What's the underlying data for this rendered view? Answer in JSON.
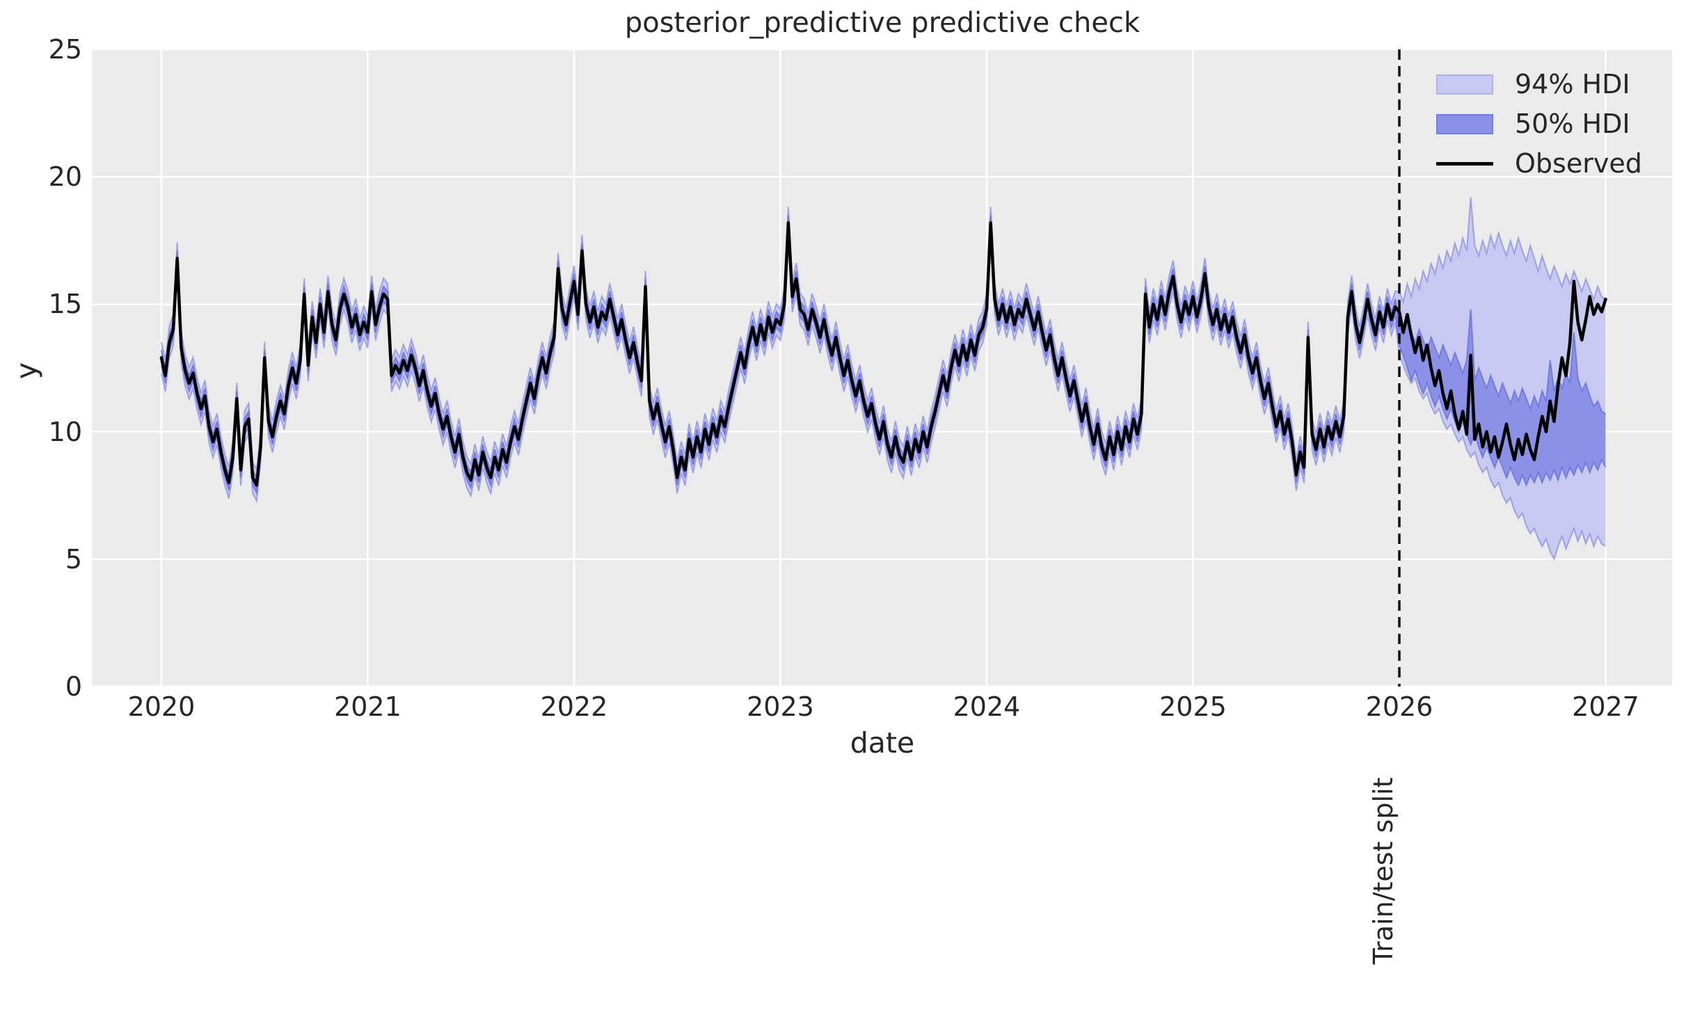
{
  "figure": {
    "title": "posterior_predictive predictive check",
    "background": "#ffffff"
  },
  "axes": {
    "xlabel": "date",
    "ylabel": "y",
    "facecolor": "#ebebeb",
    "grid_color": "#ffffff",
    "text_color": "#262626",
    "xlim": [
      2019.663,
      2027.322
    ],
    "ylim": [
      0,
      25
    ],
    "xticks": [
      "2020",
      "2021",
      "2022",
      "2023",
      "2024",
      "2025",
      "2026",
      "2027"
    ],
    "xtick_values": [
      2020,
      2021,
      2022,
      2023,
      2024,
      2025,
      2026,
      2027
    ],
    "yticks": [
      "0",
      "5",
      "10",
      "15",
      "20",
      "25"
    ],
    "ytick_values": [
      0,
      5,
      10,
      15,
      20,
      25
    ],
    "grid": "on"
  },
  "legend": {
    "location": "upper right",
    "items": [
      {
        "label": "94% HDI",
        "type": "patch",
        "color": "#c7c9f1"
      },
      {
        "label": "50% HDI",
        "type": "patch",
        "color": "#8b91e6"
      },
      {
        "label": "Observed",
        "type": "line",
        "color": "#000000"
      }
    ]
  },
  "split_marker": {
    "label": "Train/test split",
    "x": 2026.0,
    "style": "dashed",
    "color": "#0a0a0a"
  },
  "colors": {
    "observed_line": "#000000",
    "hdi94_fill": "#c7c9f1",
    "hdi50_fill": "#8b91e6",
    "hdi_edge": "#6a72df",
    "plot_bg": "#ebebeb",
    "grid": "#ffffff"
  },
  "chart_data": {
    "type": "line",
    "title": "posterior_predictive predictive check",
    "xlabel": "date",
    "ylabel": "y",
    "xlim": [
      2019.663,
      2027.322
    ],
    "ylim": [
      0,
      25
    ],
    "legend_position": "upper right",
    "x_start": 2020.0,
    "x_step": 0.01923076923,
    "n_points": 365,
    "train_test_split_x": 2026.0,
    "train_split_index": 312,
    "train_hdi94_halfwidth": 0.62,
    "train_hdi50_halfwidth": 0.3,
    "observed": [
      12.9,
      12.2,
      13.5,
      14.0,
      16.8,
      13.3,
      12.4,
      11.9,
      12.3,
      11.5,
      10.9,
      11.4,
      10.2,
      9.6,
      10.1,
      9.2,
      8.5,
      8.0,
      9.0,
      11.3,
      8.5,
      10.2,
      10.5,
      8.2,
      7.9,
      9.4,
      12.9,
      10.4,
      9.8,
      10.6,
      11.2,
      10.7,
      11.8,
      12.5,
      11.9,
      12.8,
      15.4,
      12.6,
      14.5,
      13.5,
      15.0,
      13.9,
      15.5,
      14.2,
      13.6,
      14.8,
      15.4,
      14.9,
      14.1,
      14.6,
      13.8,
      14.3,
      13.9,
      15.5,
      14.2,
      14.9,
      15.4,
      15.2,
      12.2,
      12.6,
      12.3,
      12.8,
      12.4,
      13.0,
      12.5,
      11.8,
      12.4,
      11.6,
      11.0,
      11.5,
      10.7,
      10.1,
      10.6,
      9.8,
      9.2,
      9.9,
      9.0,
      8.4,
      8.1,
      8.9,
      8.3,
      9.2,
      8.6,
      8.2,
      9.0,
      8.5,
      9.3,
      8.8,
      9.6,
      10.2,
      9.7,
      10.5,
      11.2,
      11.9,
      11.3,
      12.2,
      12.9,
      12.3,
      13.1,
      13.7,
      16.4,
      14.8,
      14.2,
      15.1,
      15.9,
      14.6,
      17.1,
      15.0,
      14.3,
      14.9,
      14.1,
      14.7,
      14.4,
      15.2,
      14.5,
      13.8,
      14.4,
      13.6,
      12.9,
      13.5,
      12.7,
      12.0,
      15.7,
      11.2,
      10.5,
      11.1,
      10.3,
      9.6,
      10.2,
      9.3,
      8.2,
      9.0,
      8.5,
      9.7,
      9.0,
      9.8,
      9.2,
      10.1,
      9.5,
      10.3,
      9.8,
      10.6,
      10.2,
      11.0,
      11.7,
      12.4,
      13.1,
      12.5,
      13.4,
      14.1,
      13.4,
      14.2,
      13.6,
      14.5,
      13.9,
      14.4,
      14.2,
      15.0,
      18.2,
      15.3,
      16.0,
      14.8,
      14.6,
      14.0,
      14.8,
      14.3,
      13.7,
      14.4,
      13.6,
      13.0,
      13.7,
      12.9,
      12.2,
      12.8,
      12.0,
      11.4,
      12.0,
      11.2,
      10.6,
      11.1,
      10.3,
      9.7,
      10.4,
      9.5,
      9.0,
      9.8,
      9.1,
      8.8,
      9.6,
      8.9,
      9.7,
      9.2,
      10.0,
      9.4,
      10.2,
      10.8,
      11.5,
      12.2,
      11.6,
      12.5,
      13.2,
      12.6,
      13.4,
      12.8,
      13.6,
      13.0,
      13.8,
      14.1,
      14.8,
      18.2,
      15.2,
      14.4,
      15.0,
      14.3,
      14.9,
      14.2,
      14.8,
      14.5,
      15.2,
      14.6,
      14.0,
      14.7,
      13.9,
      13.2,
      13.8,
      12.9,
      12.2,
      12.9,
      12.1,
      11.4,
      12.0,
      11.2,
      10.4,
      11.1,
      10.2,
      9.5,
      10.3,
      9.4,
      8.9,
      9.8,
      9.1,
      10.0,
      9.3,
      10.2,
      9.6,
      10.5,
      9.9,
      10.7,
      15.4,
      14.1,
      15.0,
      14.4,
      15.3,
      14.6,
      15.5,
      16.1,
      15.0,
      14.3,
      15.1,
      14.6,
      15.3,
      14.5,
      15.2,
      16.2,
      14.9,
      14.2,
      14.8,
      14.0,
      14.6,
      13.9,
      14.5,
      13.7,
      13.1,
      13.8,
      12.9,
      12.3,
      12.9,
      12.0,
      11.3,
      11.9,
      11.0,
      10.2,
      10.8,
      9.9,
      10.5,
      9.6,
      8.3,
      9.2,
      8.6,
      13.7,
      9.9,
      9.3,
      10.1,
      9.4,
      10.2,
      9.7,
      10.4,
      9.8,
      10.6,
      14.5,
      15.5,
      14.2,
      13.5,
      14.3,
      15.2,
      14.4,
      13.8,
      14.7,
      14.1,
      15.0,
      14.4,
      14.9,
      14.7,
      13.9,
      14.6,
      13.8,
      13.1,
      13.7,
      12.8,
      13.4,
      12.5,
      11.8,
      12.4,
      11.5,
      10.9,
      11.6,
      10.7,
      10.1,
      10.8,
      9.9,
      13.0,
      9.7,
      10.3,
      9.4,
      10.0,
      9.2,
      9.8,
      9.0,
      9.6,
      10.3,
      9.5,
      8.9,
      9.7,
      9.1,
      9.9,
      9.3,
      8.9,
      9.8,
      10.6,
      10.0,
      11.2,
      10.4,
      11.8,
      12.9,
      12.2,
      13.5,
      15.9,
      14.3,
      13.6,
      14.4,
      15.3,
      14.6,
      15.0,
      14.7,
      15.2
    ],
    "forecast_hdi": {
      "x_start": 2026.0,
      "hdi94_upper": [
        15.5,
        15.1,
        15.8,
        15.3,
        16.0,
        15.6,
        16.3,
        15.9,
        16.6,
        16.2,
        16.9,
        16.4,
        17.1,
        16.7,
        17.4,
        16.9,
        17.6,
        17.1,
        19.2,
        17.3,
        16.9,
        17.5,
        17.0,
        17.7,
        17.2,
        17.8,
        17.3,
        16.9,
        17.5,
        17.0,
        17.6,
        17.1,
        16.7,
        17.3,
        16.8,
        16.3,
        16.9,
        16.4,
        16.0,
        16.5,
        16.1,
        15.7,
        16.2,
        15.8,
        16.3,
        15.9,
        15.5,
        16.0,
        15.6,
        15.2,
        15.7,
        15.3,
        15.2
      ],
      "hdi94_lower": [
        13.0,
        12.6,
        12.2,
        11.9,
        12.1,
        11.6,
        11.3,
        11.5,
        11.0,
        10.7,
        10.9,
        10.4,
        10.1,
        10.3,
        9.9,
        9.6,
        9.8,
        9.3,
        9.0,
        9.2,
        8.7,
        8.4,
        8.6,
        8.1,
        7.8,
        8.0,
        7.5,
        7.2,
        7.4,
        6.9,
        6.6,
        6.8,
        6.3,
        6.0,
        6.2,
        5.8,
        5.5,
        5.8,
        5.3,
        5.0,
        5.5,
        5.9,
        5.4,
        5.8,
        6.2,
        5.7,
        6.1,
        5.6,
        6.0,
        5.5,
        5.9,
        5.6,
        5.5
      ],
      "hdi50_upper": [
        14.1,
        13.8,
        14.3,
        13.9,
        13.5,
        14.0,
        13.6,
        13.2,
        13.7,
        13.3,
        12.9,
        13.4,
        13.0,
        12.6,
        13.1,
        12.7,
        12.3,
        12.8,
        14.8,
        12.0,
        12.5,
        12.1,
        11.7,
        12.2,
        11.8,
        11.4,
        11.9,
        11.5,
        11.1,
        11.6,
        11.2,
        11.7,
        11.3,
        10.9,
        11.4,
        11.0,
        11.6,
        11.2,
        12.8,
        11.6,
        12.1,
        11.7,
        12.3,
        11.9,
        13.9,
        12.1,
        11.6,
        11.9,
        11.4,
        11.0,
        11.2,
        10.8,
        10.7
      ],
      "hdi50_lower": [
        13.4,
        13.0,
        12.5,
        12.0,
        12.4,
        11.9,
        11.5,
        11.9,
        11.4,
        11.0,
        11.4,
        10.9,
        10.5,
        10.9,
        10.4,
        10.0,
        10.4,
        9.9,
        9.5,
        9.9,
        9.4,
        9.0,
        9.4,
        9.0,
        8.6,
        9.0,
        8.6,
        8.2,
        8.6,
        8.2,
        7.9,
        8.3,
        7.9,
        8.3,
        8.0,
        8.4,
        8.0,
        8.4,
        8.1,
        8.5,
        8.1,
        8.6,
        8.2,
        8.6,
        8.3,
        8.7,
        8.4,
        8.8,
        8.4,
        8.8,
        8.5,
        8.9,
        8.6
      ]
    }
  }
}
